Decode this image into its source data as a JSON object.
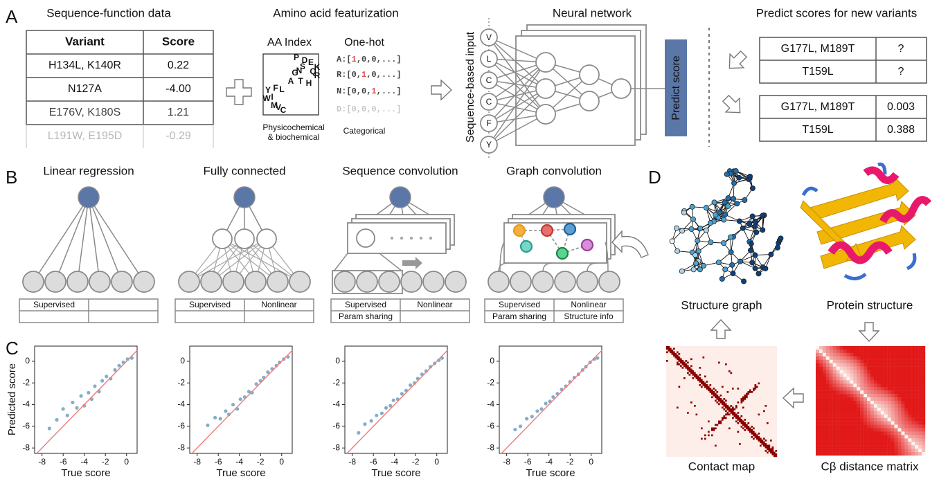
{
  "panel_a": {
    "label": "A",
    "data_title": "Sequence-function data",
    "data_table": {
      "header": [
        "Variant",
        "Score"
      ],
      "rows": [
        [
          "H134L, K140R",
          "0.22"
        ],
        [
          "N127A",
          "-4.00"
        ],
        [
          "E176V, K180S",
          "1.21"
        ],
        [
          "L191W, E195D",
          "-0.29"
        ]
      ]
    },
    "featurization_title": "Amino acid featurization",
    "aa_index": {
      "title": "AA Index",
      "letters": [
        "P",
        "D",
        "E",
        "K",
        "S",
        "N",
        "Q",
        "G",
        "R",
        "A",
        "T",
        "H",
        "Y",
        "F",
        "L",
        "W",
        "I",
        "M",
        "V",
        "C"
      ],
      "caption": [
        "Physicochemical",
        "& biochemical"
      ]
    },
    "one_hot": {
      "title": "One-hot",
      "rows": [
        [
          "A:[",
          "1",
          ",0,0,...]"
        ],
        [
          "R:[0,",
          "1",
          ",0,...]"
        ],
        [
          "N:[0,0,",
          "1",
          ",...]"
        ],
        [
          "D:[0,0,0,...]"
        ]
      ],
      "caption": "Categorical"
    },
    "network": {
      "title": "Neural network",
      "input_label": "Sequence-based input",
      "inputs": [
        "V",
        "L",
        "C",
        "C",
        "F",
        "Y"
      ],
      "output": "Predict score"
    },
    "predict": {
      "title": "Predict scores for new variants",
      "input_table": [
        [
          "G177L, M189T",
          "?"
        ],
        [
          "T159L",
          "?"
        ]
      ],
      "output_table": [
        [
          "G177L, M189T",
          "0.003"
        ],
        [
          "T159L",
          "0.388"
        ]
      ]
    }
  },
  "panel_b": {
    "label": "B",
    "models": [
      {
        "title": "Linear regression",
        "properties": [
          "Supervised"
        ]
      },
      {
        "title": "Fully connected",
        "properties": [
          "Supervised",
          "Nonlinear"
        ]
      },
      {
        "title": "Sequence convolution",
        "properties": [
          "Supervised",
          "Nonlinear",
          "Param sharing"
        ]
      },
      {
        "title": "Graph convolution",
        "properties": [
          "Supervised",
          "Nonlinear",
          "Param sharing",
          "Structure info"
        ]
      }
    ]
  },
  "panel_c": {
    "label": "C",
    "y_label": "Predicted score",
    "charts": [
      {
        "type": "scatter",
        "x_label": "True score",
        "color": "#1f6b99",
        "x": [
          -7.3,
          -6.6,
          -6.0,
          -5.6,
          -5.1,
          -4.7,
          -4.3,
          -4.0,
          -3.6,
          -3.3,
          -3.0,
          -2.6,
          -2.3,
          -1.9,
          -1.5,
          -1.1,
          -0.7,
          -0.3,
          0.1,
          0.5
        ],
        "y": [
          -6.2,
          -5.4,
          -4.4,
          -5.0,
          -3.8,
          -4.3,
          -3.2,
          -4.1,
          -2.9,
          -3.5,
          -2.3,
          -2.8,
          -1.8,
          -1.4,
          -1.6,
          -0.8,
          -0.4,
          -0.1,
          0.2,
          0.3
        ],
        "xlim": [
          -8.7,
          1.0
        ],
        "ylim": [
          -8.5,
          1.4
        ],
        "xticks": [
          -8,
          -6,
          -4,
          -2,
          0
        ],
        "yticks": [
          0,
          -2,
          -4,
          -6,
          -8
        ]
      },
      {
        "type": "scatter",
        "x_label": "True score",
        "color": "#1f6b99",
        "x": [
          -7.0,
          -6.3,
          -5.8,
          -5.3,
          -5.0,
          -4.6,
          -4.2,
          -3.9,
          -3.5,
          -3.1,
          -2.8,
          -2.4,
          -2.0,
          -1.7,
          -1.3,
          -0.9,
          -0.5,
          -0.2,
          0.2,
          0.6
        ],
        "y": [
          -5.9,
          -5.2,
          -5.3,
          -4.6,
          -4.9,
          -4.0,
          -4.4,
          -3.5,
          -3.3,
          -2.8,
          -2.9,
          -2.1,
          -1.8,
          -1.5,
          -1.0,
          -0.7,
          -0.4,
          -0.1,
          0.2,
          0.4
        ],
        "xlim": [
          -8.7,
          1.0
        ],
        "ylim": [
          -8.5,
          1.4
        ],
        "xticks": [
          -8,
          -6,
          -4,
          -2,
          0
        ],
        "yticks": [
          0,
          -2,
          -4,
          -6,
          -8
        ]
      },
      {
        "type": "scatter",
        "x_label": "True score",
        "color": "#1f6b99",
        "x": [
          -7.4,
          -6.8,
          -6.2,
          -5.7,
          -5.2,
          -4.8,
          -4.4,
          -4.1,
          -3.7,
          -3.3,
          -2.9,
          -2.5,
          -2.1,
          -1.8,
          -1.4,
          -1.0,
          -0.6,
          -0.2,
          0.2,
          0.5
        ],
        "y": [
          -6.6,
          -5.8,
          -5.5,
          -5.0,
          -4.8,
          -4.3,
          -4.1,
          -3.6,
          -3.5,
          -3.0,
          -2.7,
          -2.2,
          -2.0,
          -1.6,
          -1.2,
          -0.9,
          -0.5,
          -0.2,
          0.1,
          0.3
        ],
        "xlim": [
          -8.7,
          1.0
        ],
        "ylim": [
          -8.5,
          1.4
        ],
        "xticks": [
          -8,
          -6,
          -4,
          -2,
          0
        ],
        "yticks": [
          0,
          -2,
          -4,
          -6,
          -8
        ]
      },
      {
        "type": "scatter",
        "x_label": "True score",
        "color": "#1f6b99",
        "x": [
          -7.2,
          -6.7,
          -6.1,
          -5.6,
          -5.1,
          -4.7,
          -4.3,
          -3.9,
          -3.6,
          -3.2,
          -2.8,
          -2.4,
          -2.0,
          -1.6,
          -1.2,
          -0.8,
          -0.5,
          -0.1,
          0.3,
          0.6
        ],
        "y": [
          -6.3,
          -6.0,
          -5.3,
          -5.1,
          -4.6,
          -4.4,
          -3.9,
          -3.7,
          -3.3,
          -3.0,
          -2.6,
          -2.3,
          -1.9,
          -1.5,
          -1.2,
          -0.8,
          -0.5,
          -0.1,
          0.2,
          0.3
        ],
        "xlim": [
          -8.7,
          1.0
        ],
        "ylim": [
          -8.5,
          1.4
        ],
        "xticks": [
          -8,
          -6,
          -4,
          -2,
          0
        ],
        "yticks": [
          0,
          -2,
          -4,
          -6,
          -8
        ]
      }
    ]
  },
  "panel_d": {
    "label": "D",
    "structure_graph": "Structure graph",
    "protein_structure": "Protein structure",
    "contact_map": "Contact map",
    "distance_matrix": "Cβ distance matrix"
  }
}
